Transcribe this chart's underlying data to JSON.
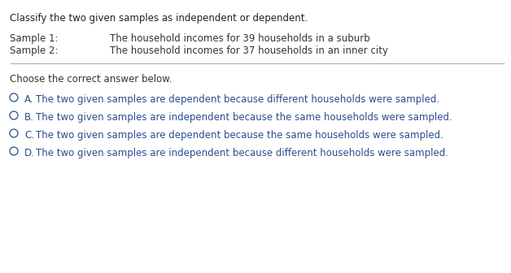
{
  "bg_color": "#ffffff",
  "title_text": "Classify the two given samples as independent or dependent.",
  "title_color": "#222222",
  "sample1_label": "Sample 1:",
  "sample2_label": "Sample 2:",
  "sample1_value": "The household incomes for 39 households in a suburb",
  "sample2_value": "The household incomes for 37 households in an inner city",
  "sample_color": "#333333",
  "divider_color": "#aaaaaa",
  "choose_text": "Choose the correct answer below.",
  "choose_color": "#333333",
  "options": [
    {
      "letter": "A.",
      "text": "The two given samples are dependent because different households were sampled."
    },
    {
      "letter": "B.",
      "text": "The two given samples are independent because the same households were sampled."
    },
    {
      "letter": "C.",
      "text": "The two given samples are dependent because the same households were sampled."
    },
    {
      "letter": "D.",
      "text": "The two given samples are independent because different households were sampled."
    }
  ],
  "option_color": "#2a4d8f",
  "circle_color": "#2a4d8f",
  "fontsize": 8.5
}
